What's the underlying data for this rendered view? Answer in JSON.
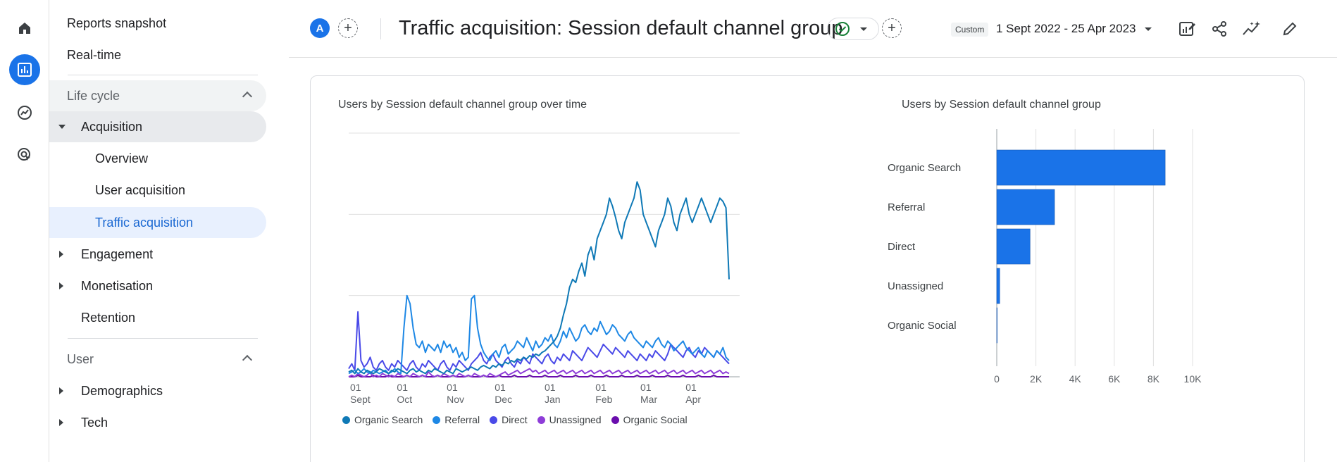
{
  "nav": {
    "reports_snapshot": "Reports snapshot",
    "realtime": "Real-time",
    "lifecycle": "Life cycle",
    "acquisition": "Acquisition",
    "overview": "Overview",
    "user_acquisition": "User acquisition",
    "traffic_acquisition": "Traffic acquisition",
    "engagement": "Engagement",
    "monetisation": "Monetisation",
    "retention": "Retention",
    "user": "User",
    "demographics": "Demographics",
    "tech": "Tech"
  },
  "header": {
    "avatar_letter": "A",
    "title": "Traffic acquisition: Session default channel group",
    "date_chip": "Custom",
    "date_range": "1 Sept 2022 - 25 Apr 2023"
  },
  "icons": [
    "home-icon",
    "reports-icon",
    "explore-icon",
    "advertising-icon",
    "customize-report-icon",
    "share-icon",
    "insights-icon",
    "edit-icon"
  ],
  "colors": {
    "accent": "#1a73e8",
    "organic_search": "#0f79b6",
    "referral": "#1e88e5",
    "direct": "#4a4ae8",
    "unassigned": "#8e3dd8",
    "organic_social": "#6a0dad"
  },
  "chart_data": [
    {
      "type": "line",
      "title": "Users by Session default channel group over time",
      "ylim": [
        0,
        150
      ],
      "yticks": [
        0,
        50,
        100,
        150
      ],
      "xticks": [
        {
          "label": "01",
          "sub": "Sept"
        },
        {
          "label": "01",
          "sub": "Oct"
        },
        {
          "label": "01",
          "sub": "Nov"
        },
        {
          "label": "01",
          "sub": "Dec"
        },
        {
          "label": "01",
          "sub": "Jan"
        },
        {
          "label": "01",
          "sub": "Feb"
        },
        {
          "label": "01",
          "sub": "Mar"
        },
        {
          "label": "01",
          "sub": "Apr"
        }
      ],
      "series": [
        {
          "name": "Organic Search",
          "color": "#0f79b6",
          "values": [
            3,
            4,
            2,
            5,
            3,
            2,
            4,
            3,
            2,
            3,
            5,
            4,
            3,
            2,
            4,
            3,
            5,
            4,
            3,
            2,
            4,
            5,
            3,
            4,
            3,
            2,
            4,
            3,
            5,
            4,
            3,
            2,
            4,
            3,
            2,
            5,
            4,
            3,
            4,
            5,
            6,
            5,
            4,
            6,
            7,
            6,
            5,
            7,
            6,
            8,
            7,
            9,
            8,
            10,
            9,
            11,
            10,
            12,
            11,
            13,
            12,
            14,
            13,
            15,
            16,
            18,
            20,
            22,
            25,
            30,
            38,
            45,
            55,
            60,
            58,
            65,
            70,
            62,
            75,
            80,
            72,
            85,
            90,
            95,
            100,
            110,
            105,
            98,
            90,
            85,
            95,
            100,
            105,
            110,
            120,
            115,
            100,
            95,
            90,
            85,
            80,
            90,
            95,
            100,
            110,
            105,
            95,
            90,
            100,
            105,
            110,
            100,
            95,
            100,
            105,
            110,
            105,
            100,
            95,
            100,
            105,
            110,
            108,
            104,
            60
          ]
        },
        {
          "name": "Referral",
          "color": "#1e88e5",
          "values": [
            2,
            3,
            4,
            2,
            3,
            5,
            3,
            2,
            4,
            3,
            2,
            3,
            4,
            2,
            3,
            5,
            3,
            2,
            30,
            50,
            45,
            30,
            20,
            18,
            22,
            15,
            20,
            18,
            16,
            20,
            15,
            22,
            18,
            20,
            15,
            18,
            12,
            15,
            10,
            12,
            48,
            50,
            30,
            20,
            15,
            12,
            10,
            14,
            16,
            12,
            18,
            20,
            14,
            16,
            18,
            22,
            20,
            18,
            24,
            20,
            16,
            22,
            18,
            20,
            24,
            22,
            26,
            20,
            18,
            22,
            28,
            24,
            30,
            26,
            22,
            24,
            30,
            32,
            28,
            26,
            30,
            28,
            34,
            30,
            26,
            28,
            32,
            30,
            26,
            24,
            22,
            26,
            28,
            24,
            22,
            20,
            18,
            22,
            20,
            18,
            22,
            24,
            20,
            18,
            22,
            20,
            16,
            18,
            20,
            22,
            18,
            16,
            14,
            16,
            18,
            14,
            12,
            16,
            14,
            12,
            16,
            14,
            18,
            12,
            10
          ]
        },
        {
          "name": "Direct",
          "color": "#4a4ae8",
          "values": [
            5,
            8,
            4,
            40,
            10,
            6,
            8,
            12,
            6,
            4,
            8,
            10,
            6,
            4,
            8,
            6,
            10,
            8,
            6,
            4,
            8,
            10,
            6,
            4,
            8,
            6,
            10,
            8,
            6,
            4,
            8,
            10,
            6,
            4,
            8,
            6,
            10,
            8,
            6,
            4,
            8,
            10,
            12,
            15,
            10,
            8,
            12,
            14,
            10,
            8,
            6,
            10,
            12,
            8,
            6,
            10,
            8,
            12,
            10,
            8,
            14,
            12,
            10,
            8,
            12,
            14,
            10,
            8,
            12,
            10,
            14,
            12,
            10,
            16,
            14,
            12,
            10,
            14,
            18,
            16,
            14,
            12,
            16,
            20,
            18,
            16,
            14,
            18,
            16,
            14,
            12,
            16,
            14,
            12,
            10,
            14,
            12,
            10,
            14,
            12,
            16,
            14,
            12,
            10,
            14,
            20,
            18,
            16,
            14,
            12,
            16,
            18,
            14,
            12,
            16,
            14,
            18,
            16,
            14,
            12,
            16,
            14,
            12,
            10,
            8
          ]
        },
        {
          "name": "Unassigned",
          "color": "#8e3dd8",
          "values": [
            0,
            1,
            0,
            2,
            1,
            0,
            1,
            3,
            0,
            1,
            0,
            2,
            1,
            0,
            1,
            0,
            2,
            1,
            0,
            1,
            0,
            2,
            1,
            0,
            1,
            0,
            3,
            1,
            0,
            1,
            0,
            2,
            1,
            0,
            1,
            0,
            2,
            1,
            0,
            1,
            0,
            2,
            1,
            0,
            1,
            0,
            2,
            1,
            0,
            1,
            2,
            3,
            1,
            2,
            3,
            4,
            2,
            3,
            4,
            5,
            3,
            4,
            2,
            3,
            4,
            2,
            3,
            4,
            2,
            3,
            4,
            2,
            3,
            4,
            2,
            3,
            4,
            2,
            3,
            4,
            2,
            3,
            4,
            2,
            3,
            4,
            2,
            3,
            4,
            2,
            3,
            4,
            2,
            3,
            4,
            2,
            3,
            4,
            2,
            3,
            4,
            2,
            3,
            4,
            2,
            3,
            4,
            2,
            3,
            4,
            2,
            3,
            4,
            2,
            3,
            4,
            2,
            3,
            4,
            2,
            3,
            4,
            2,
            3,
            2
          ]
        },
        {
          "name": "Organic Social",
          "color": "#6a0dad",
          "values": [
            0,
            0,
            0,
            1,
            0,
            0,
            0,
            0,
            1,
            0,
            0,
            0,
            0,
            1,
            0,
            0,
            0,
            0,
            0,
            1,
            0,
            0,
            0,
            0,
            1,
            0,
            0,
            0,
            0,
            1,
            0,
            0,
            0,
            0,
            1,
            0,
            0,
            0,
            0,
            1,
            0,
            0,
            0,
            0,
            1,
            0,
            0,
            0,
            0,
            1,
            0,
            0,
            0,
            0,
            1,
            0,
            0,
            0,
            0,
            1,
            0,
            0,
            0,
            0,
            1,
            0,
            0,
            0,
            0,
            1,
            0,
            0,
            0,
            0,
            1,
            0,
            0,
            0,
            0,
            1,
            0,
            0,
            0,
            0,
            1,
            0,
            0,
            0,
            0,
            1,
            0,
            0,
            0,
            0,
            1,
            0,
            0,
            0,
            0,
            1,
            0,
            0,
            0,
            0,
            1,
            0,
            0,
            0,
            0,
            1,
            0,
            0,
            0,
            0,
            1,
            0,
            0,
            0,
            0,
            1,
            0,
            0,
            0,
            0,
            0
          ]
        }
      ]
    },
    {
      "type": "bar",
      "orientation": "horizontal",
      "title": "Users by Session default channel group",
      "categories": [
        "Organic Search",
        "Referral",
        "Direct",
        "Unassigned",
        "Organic Social"
      ],
      "values": [
        8600,
        2950,
        1700,
        150,
        20
      ],
      "xlim": [
        0,
        10000
      ],
      "xticks": [
        "0",
        "2K",
        "4K",
        "6K",
        "8K",
        "10K"
      ],
      "color": "#1a73e8"
    }
  ]
}
